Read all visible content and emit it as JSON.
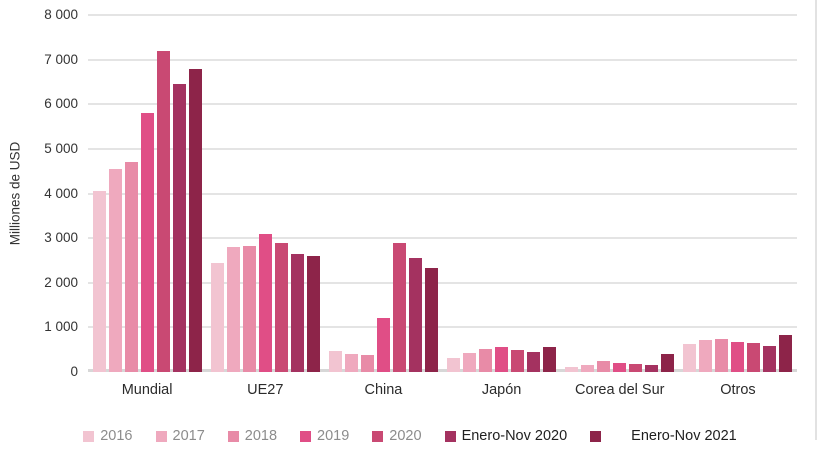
{
  "chart_data": {
    "type": "bar",
    "title": "",
    "ylabel": "Milliones de USD",
    "xlabel": "",
    "ylim": [
      0,
      8000
    ],
    "ytick_step": 1000,
    "grid": true,
    "grid_color": "#e4e4e4",
    "baseline_color": "#d7d7d7",
    "tick_label_color": "#333333",
    "category_label_color": "#2b2b2b",
    "legend_position": "bottom",
    "categories": [
      "Mundial",
      "UE27",
      "China",
      "Japón",
      "Corea del Sur",
      "Otros"
    ],
    "series": [
      {
        "name": "2016",
        "color": "#f2c4d1",
        "label_color": "#8c8c8c",
        "values": [
          4050,
          2450,
          460,
          310,
          120,
          620
        ]
      },
      {
        "name": "2017",
        "color": "#efa9be",
        "label_color": "#8c8c8c",
        "values": [
          4550,
          2800,
          410,
          430,
          165,
          710
        ]
      },
      {
        "name": "2018",
        "color": "#e88ba7",
        "label_color": "#8c8c8c",
        "values": [
          4700,
          2830,
          380,
          510,
          255,
          740
        ]
      },
      {
        "name": "2019",
        "color": "#e04e86",
        "label_color": "#8c8c8c",
        "values": [
          5800,
          3100,
          1200,
          550,
          195,
          680
        ]
      },
      {
        "name": "2020",
        "color": "#c94973",
        "label_color": "#8c8c8c",
        "values": [
          7200,
          2900,
          2900,
          500,
          175,
          640
        ]
      },
      {
        "name": "Enero-Nov 2020",
        "color": "#a43260",
        "label_color": "#1f1f1f",
        "values": [
          6450,
          2650,
          2550,
          440,
          150,
          590
        ]
      },
      {
        "name": "Enero-Nov 2021",
        "color": "#8d2449",
        "label_color": "#1f1f1f",
        "values": [
          6800,
          2600,
          2330,
          570,
          400,
          840
        ]
      }
    ]
  }
}
